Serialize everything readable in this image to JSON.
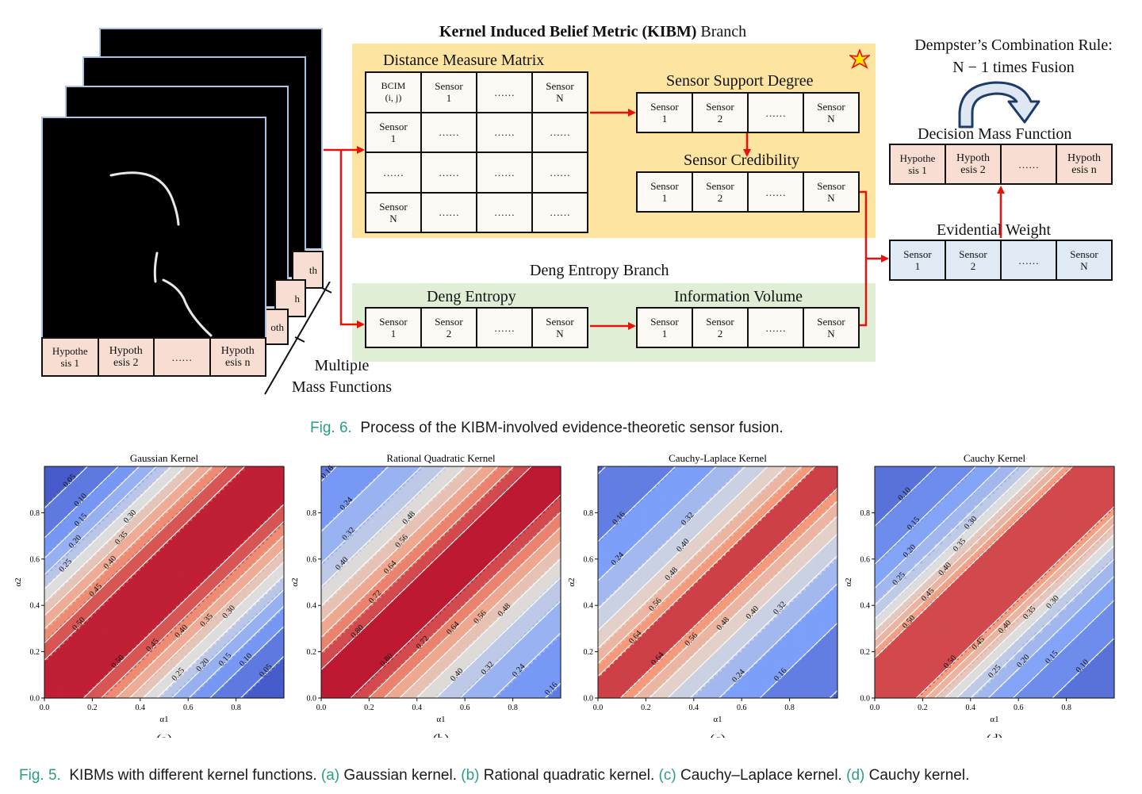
{
  "top_figure": {
    "kibm_title_bold": "Kernel Induced Belief Metric (KIBM)",
    "kibm_title_rest": " Branch",
    "distance_matrix_title": "Distance Measure Matrix",
    "distance_matrix": [
      [
        "BCIM\n(i, j)",
        "Sensor\n1",
        "……",
        "Sensor\nN"
      ],
      [
        "Sensor\n1",
        "……",
        "……",
        "……"
      ],
      [
        "……",
        "……",
        "……",
        "……"
      ],
      [
        "Sensor\nN",
        "……",
        "……",
        "……"
      ]
    ],
    "sensor_support_title": "Sensor Support Degree",
    "sensor_support_cells": [
      "Sensor\n1",
      "Sensor\n2",
      "……",
      "Sensor\nN"
    ],
    "sensor_credibility_title": "Sensor Credibility",
    "sensor_credibility_cells": [
      "Sensor\n1",
      "Sensor\n2",
      "……",
      "Sensor\nN"
    ],
    "deng_branch_title": "Deng Entropy Branch",
    "deng_entropy_title": "Deng Entropy",
    "deng_entropy_cells": [
      "Sensor\n1",
      "Sensor\n2",
      "……",
      "Sensor\nN"
    ],
    "info_volume_title": "Information Volume",
    "info_volume_cells": [
      "Sensor\n1",
      "Sensor\n2",
      "……",
      "Sensor\nN"
    ],
    "dempster_line1": "Dempster’s Combination Rule:",
    "dempster_line2": "N − 1 times Fusion",
    "decision_title": "Decision Mass Function",
    "decision_cells": [
      "Hypothe\nsis 1",
      "Hypoth\nesis 2",
      "……",
      "Hypoth\nesis n"
    ],
    "evidential_title": "Evidential Weight",
    "evidential_cells": [
      "Sensor\n1",
      "Sensor\n2",
      "……",
      "Sensor\nN"
    ],
    "mass_cells": [
      "Hypothe\nsis 1",
      "Hypoth\nesis 2",
      "……",
      "Hypoth\nesis n"
    ],
    "stack_fragments": [
      "th",
      "n",
      "h",
      "oth",
      "n"
    ],
    "multiple_line1": "Multiple",
    "multiple_line2": "Mass Functions",
    "colors": {
      "yellow": "#fde4a1",
      "green": "#e0eed6",
      "pink": "#f8ded2",
      "blue": "#dfeaf4",
      "arrow": "#e8120c"
    }
  },
  "caption6": {
    "label": "Fig. 6.",
    "text": "Process of the KIBM-involved evidence-theoretic sensor fusion."
  },
  "caption5": {
    "label": "Fig. 5.",
    "text": "KIBMs with different kernel functions.",
    "parts": [
      {
        "tag": "(a)",
        "text": " Gaussian kernel."
      },
      {
        "tag": "(b)",
        "text": " Rational quadratic kernel."
      },
      {
        "tag": "(c)",
        "text": " Cauchy–Laplace kernel."
      },
      {
        "tag": "(d)",
        "text": " Cauchy kernel."
      }
    ]
  },
  "chart_data": [
    {
      "type": "heatmap",
      "title": "Gaussian Kernel",
      "sublabel": "(a)",
      "xlabel": "α1",
      "ylabel": "α2",
      "xlim": [
        0,
        1
      ],
      "ylim": [
        0,
        1
      ],
      "x_ticks": [
        "0.0",
        "0.2",
        "0.4",
        "0.6",
        "0.8"
      ],
      "y_ticks": [
        "0.0",
        "0.2",
        "0.4",
        "0.6",
        "0.8"
      ],
      "levels": [
        0.05,
        0.1,
        0.15,
        0.2,
        0.25,
        0.3,
        0.35,
        0.4,
        0.45,
        0.5
      ],
      "contour_labels": [
        "0.50",
        "0.45",
        "0.40",
        "0.35",
        "0.30",
        "0.25",
        "0.20",
        "0.15",
        "0.10",
        "0.05"
      ],
      "vmax": 0.55,
      "colormap": "coolwarm"
    },
    {
      "type": "heatmap",
      "title": "Rational Quadratic Kernel",
      "sublabel": "(b)",
      "xlabel": "α1",
      "ylabel": "α2",
      "xlim": [
        0,
        1
      ],
      "ylim": [
        0,
        1
      ],
      "x_ticks": [
        "0.0",
        "0.2",
        "0.4",
        "0.6",
        "0.8"
      ],
      "y_ticks": [
        "0.0",
        "0.2",
        "0.4",
        "0.6",
        "0.8"
      ],
      "levels": [
        0.08,
        0.16,
        0.24,
        0.32,
        0.4,
        0.48,
        0.56,
        0.64,
        0.72,
        0.8
      ],
      "contour_labels": [
        "0.80",
        "0.72",
        "0.64",
        "0.56",
        "0.48",
        "0.40",
        "0.32",
        "0.24",
        "0.16",
        "0.08"
      ],
      "vmax": 0.86,
      "colormap": "coolwarm"
    },
    {
      "type": "heatmap",
      "title": "Cauchy-Laplace Kernel",
      "sublabel": "(c)",
      "xlabel": "α1",
      "ylabel": "α2",
      "xlim": [
        0,
        1
      ],
      "ylim": [
        0,
        1
      ],
      "x_ticks": [
        "0.0",
        "0.2",
        "0.4",
        "0.6",
        "0.8"
      ],
      "y_ticks": [
        "0.0",
        "0.2",
        "0.4",
        "0.6",
        "0.8"
      ],
      "levels": [
        0.08,
        0.16,
        0.24,
        0.32,
        0.4,
        0.48,
        0.56,
        0.64
      ],
      "contour_labels": [
        "0.64",
        "0.56",
        "0.48",
        "0.40",
        "0.32",
        "0.24",
        "0.16",
        "0.08"
      ],
      "vmax": 0.8,
      "colormap": "coolwarm"
    },
    {
      "type": "heatmap",
      "title": "Cauchy Kernel",
      "sublabel": "(d)",
      "xlabel": "α1",
      "ylabel": "α2",
      "xlim": [
        0,
        1
      ],
      "ylim": [
        0,
        1
      ],
      "x_ticks": [
        "0.0",
        "0.2",
        "0.4",
        "0.6",
        "0.8"
      ],
      "y_ticks": [
        "0.0",
        "0.2",
        "0.4",
        "0.6",
        "0.8"
      ],
      "levels": [
        0.05,
        0.1,
        0.15,
        0.2,
        0.25,
        0.3,
        0.35,
        0.4,
        0.45,
        0.5
      ],
      "contour_labels": [
        "0.50",
        "0.45",
        "0.40",
        "0.35",
        "0.30",
        "0.25",
        "0.20",
        "0.15",
        "0.10",
        "0.05"
      ],
      "vmax": 0.65,
      "colormap": "coolwarm"
    }
  ]
}
